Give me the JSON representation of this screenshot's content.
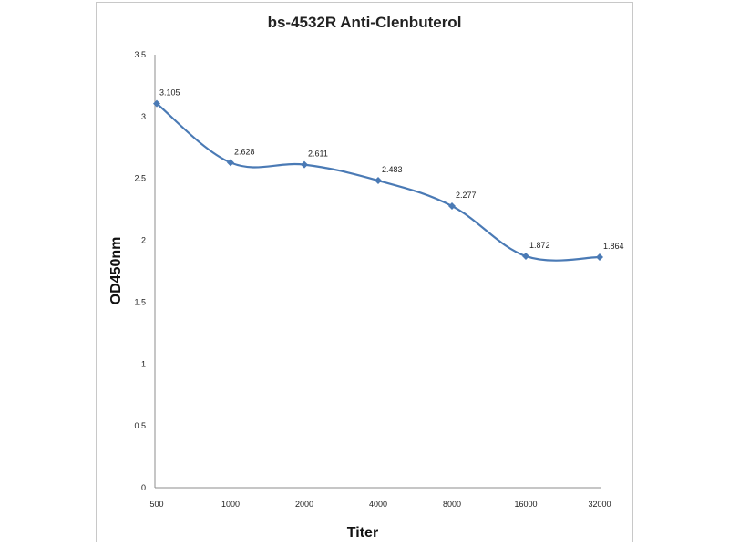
{
  "chart_data": {
    "type": "line",
    "title": "bs-4532R Anti-Clenbuterol",
    "xlabel": "Titer",
    "ylabel": "OD450nm",
    "categories": [
      "500",
      "1000",
      "2000",
      "4000",
      "8000",
      "16000",
      "32000"
    ],
    "series": [
      {
        "values": [
          3.105,
          2.628,
          2.611,
          2.483,
          2.277,
          1.872,
          1.864
        ]
      }
    ],
    "data_labels": [
      "3.105",
      "2.628",
      "2.611",
      "2.483",
      "2.277",
      "1.872",
      "1.864"
    ],
    "ylim": [
      0,
      3.5
    ],
    "yticks": [
      "0",
      "0.5",
      "1",
      "1.5",
      "2",
      "2.5",
      "3",
      "3.5"
    ],
    "grid": false,
    "legend": "none",
    "line_color": "#4a7ab5",
    "marker": "diamond"
  }
}
